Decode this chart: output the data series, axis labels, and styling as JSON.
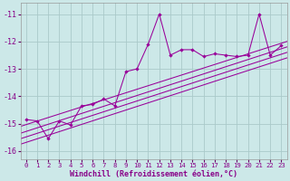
{
  "xlabel": "Windchill (Refroidissement éolien,°C)",
  "bg_color": "#cce8e8",
  "grid_color": "#aacaca",
  "line_color": "#990099",
  "xlim": [
    -0.5,
    23.5
  ],
  "ylim": [
    -16.3,
    -10.6
  ],
  "xticks": [
    0,
    1,
    2,
    3,
    4,
    5,
    6,
    7,
    8,
    9,
    10,
    11,
    12,
    13,
    14,
    15,
    16,
    17,
    18,
    19,
    20,
    21,
    22,
    23
  ],
  "yticks": [
    -16,
    -15,
    -14,
    -13,
    -12,
    -11
  ],
  "main_series": [
    [
      0,
      -14.85
    ],
    [
      1,
      -14.9
    ],
    [
      2,
      -15.55
    ],
    [
      3,
      -14.9
    ],
    [
      4,
      -15.05
    ],
    [
      5,
      -14.35
    ],
    [
      6,
      -14.3
    ],
    [
      7,
      -14.1
    ],
    [
      8,
      -14.35
    ],
    [
      9,
      -13.1
    ],
    [
      10,
      -13.0
    ],
    [
      11,
      -12.1
    ],
    [
      12,
      -11.0
    ],
    [
      13,
      -12.5
    ],
    [
      14,
      -12.3
    ],
    [
      15,
      -12.3
    ],
    [
      16,
      -12.55
    ],
    [
      17,
      -12.45
    ],
    [
      18,
      -12.5
    ],
    [
      19,
      -12.55
    ],
    [
      20,
      -12.5
    ],
    [
      21,
      -11.0
    ],
    [
      22,
      -12.5
    ],
    [
      23,
      -12.15
    ]
  ],
  "regression_lines": [
    [
      [
        -0.5,
        -15.1
      ],
      [
        23.5,
        -12.0
      ]
    ],
    [
      [
        -0.5,
        -15.35
      ],
      [
        23.5,
        -12.2
      ]
    ],
    [
      [
        -0.5,
        -15.55
      ],
      [
        23.5,
        -12.4
      ]
    ],
    [
      [
        -0.5,
        -15.75
      ],
      [
        23.5,
        -12.6
      ]
    ]
  ]
}
